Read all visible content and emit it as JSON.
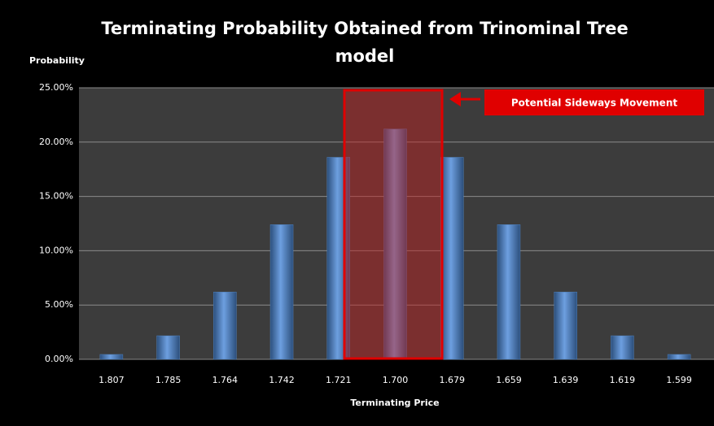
{
  "chart_data": {
    "type": "bar",
    "title": "Terminating Probability Obtained from Trinominal Tree model",
    "ylabel": "Probability",
    "xlabel": "Terminating Price",
    "annotation": "Potential Sideways Movement",
    "categories": [
      "1.807",
      "1.785",
      "1.764",
      "1.742",
      "1.721",
      "1.700",
      "1.679",
      "1.659",
      "1.639",
      "1.619",
      "1.599"
    ],
    "values": [
      0.45,
      2.17,
      6.2,
      12.4,
      18.6,
      21.2,
      18.6,
      12.4,
      6.2,
      2.17,
      0.45
    ],
    "color": "#4f81bd",
    "ylim": [
      0,
      25
    ],
    "yticks": [
      {
        "value": 0,
        "label": "0.00%"
      },
      {
        "value": 5,
        "label": "5.00%"
      },
      {
        "value": 10,
        "label": "10.00%"
      },
      {
        "value": 15,
        "label": "15.00%"
      },
      {
        "value": 20,
        "label": "20.00%"
      },
      {
        "value": 25,
        "label": "25.00%"
      }
    ],
    "grid": true
  }
}
